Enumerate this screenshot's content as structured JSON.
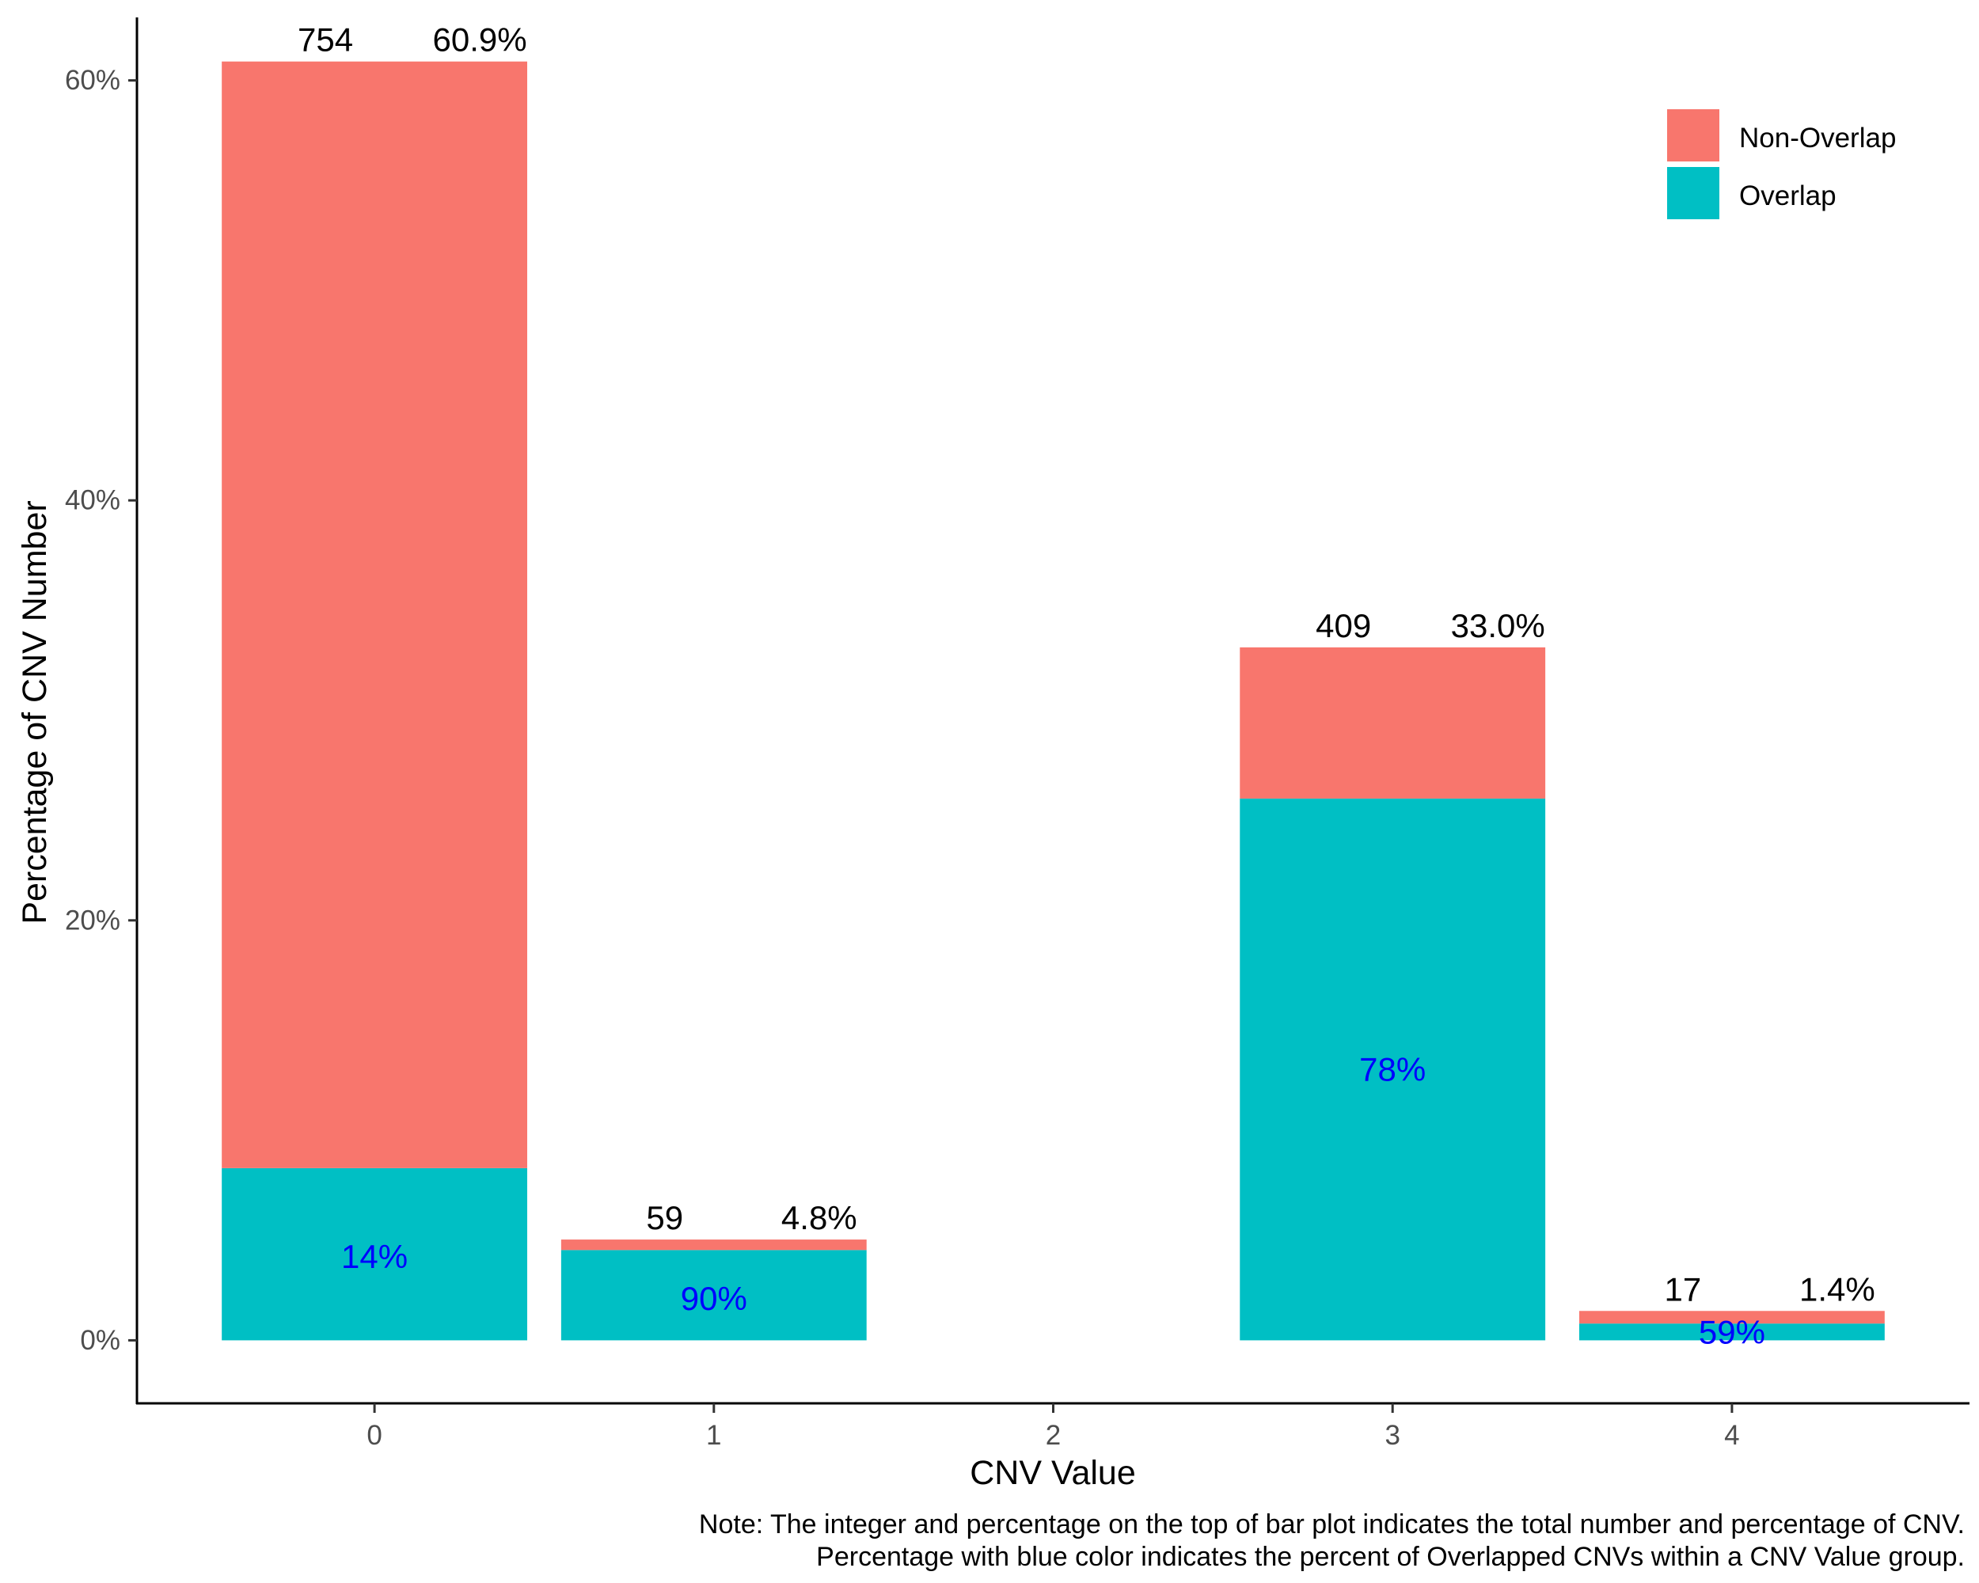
{
  "chart_data": {
    "type": "bar",
    "stacked": true,
    "xlabel": "CNV Value",
    "ylabel": "Percentage of CNV Number",
    "x_ticks": [
      "0",
      "1",
      "2",
      "3",
      "4"
    ],
    "y_ticks": [
      "0%",
      "20%",
      "40%",
      "60%"
    ],
    "ylim": [
      -3,
      63
    ],
    "xlim": [
      -0.7,
      4.7
    ],
    "grid": false,
    "legend_placement": "top-right",
    "legend": [
      "Non-Overlap",
      "Overlap"
    ],
    "categories": [
      "0",
      "1",
      "3",
      "4"
    ],
    "x": [
      0,
      1,
      3,
      4
    ],
    "series": [
      {
        "name": "Overlap",
        "color": "#00BFC4",
        "values": [
          8.2,
          4.3,
          25.8,
          0.8
        ]
      },
      {
        "name": "Non-Overlap",
        "color": "#F8766D",
        "values": [
          52.7,
          0.5,
          7.2,
          0.6
        ]
      }
    ],
    "totals_pct": [
      60.9,
      4.8,
      33.0,
      1.4
    ],
    "count_labels": [
      "754",
      "59",
      "409",
      "17"
    ],
    "total_pct_labels": [
      "60.9%",
      "4.8%",
      "33.0%",
      "1.4%"
    ],
    "overlap_pct_labels": [
      "14%",
      "90%",
      "78%",
      "59%"
    ],
    "overlap_label_color": "#0000FF",
    "overlap_label_positions": [
      4.0,
      2.0,
      12.9,
      0.4
    ],
    "note_lines": [
      "Note: The integer and percentage on the top of bar plot indicates the total number and percentage of CNV.",
      "Percentage with blue color indicates the percent of Overlapped CNVs within a CNV Value group."
    ]
  }
}
